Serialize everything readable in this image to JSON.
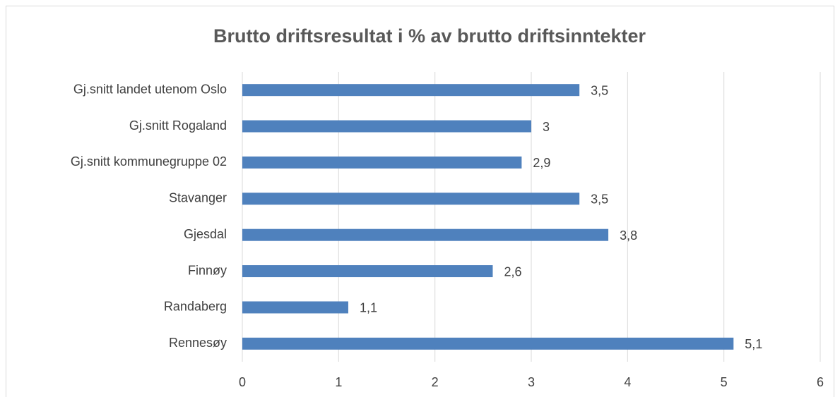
{
  "chart_data": {
    "type": "bar",
    "orientation": "horizontal",
    "title": "Brutto driftsresultat i % av brutto driftsinntekter",
    "categories": [
      "Gj.snitt landet utenom Oslo",
      "Gj.snitt Rogaland",
      "Gj.snitt kommunegruppe 02",
      "Stavanger",
      "Gjesdal",
      "Finnøy",
      "Randaberg",
      "Rennesøy"
    ],
    "values": [
      3.5,
      3,
      2.9,
      3.5,
      3.8,
      2.6,
      1.1,
      5.1
    ],
    "value_labels": [
      "3,5",
      "3",
      "2,9",
      "3,5",
      "3,8",
      "2,6",
      "1,1",
      "5,1"
    ],
    "color": "#4f81bd",
    "xlim": [
      0,
      6
    ],
    "xticks": [
      0,
      1,
      2,
      3,
      4,
      5,
      6
    ],
    "grid": true
  }
}
